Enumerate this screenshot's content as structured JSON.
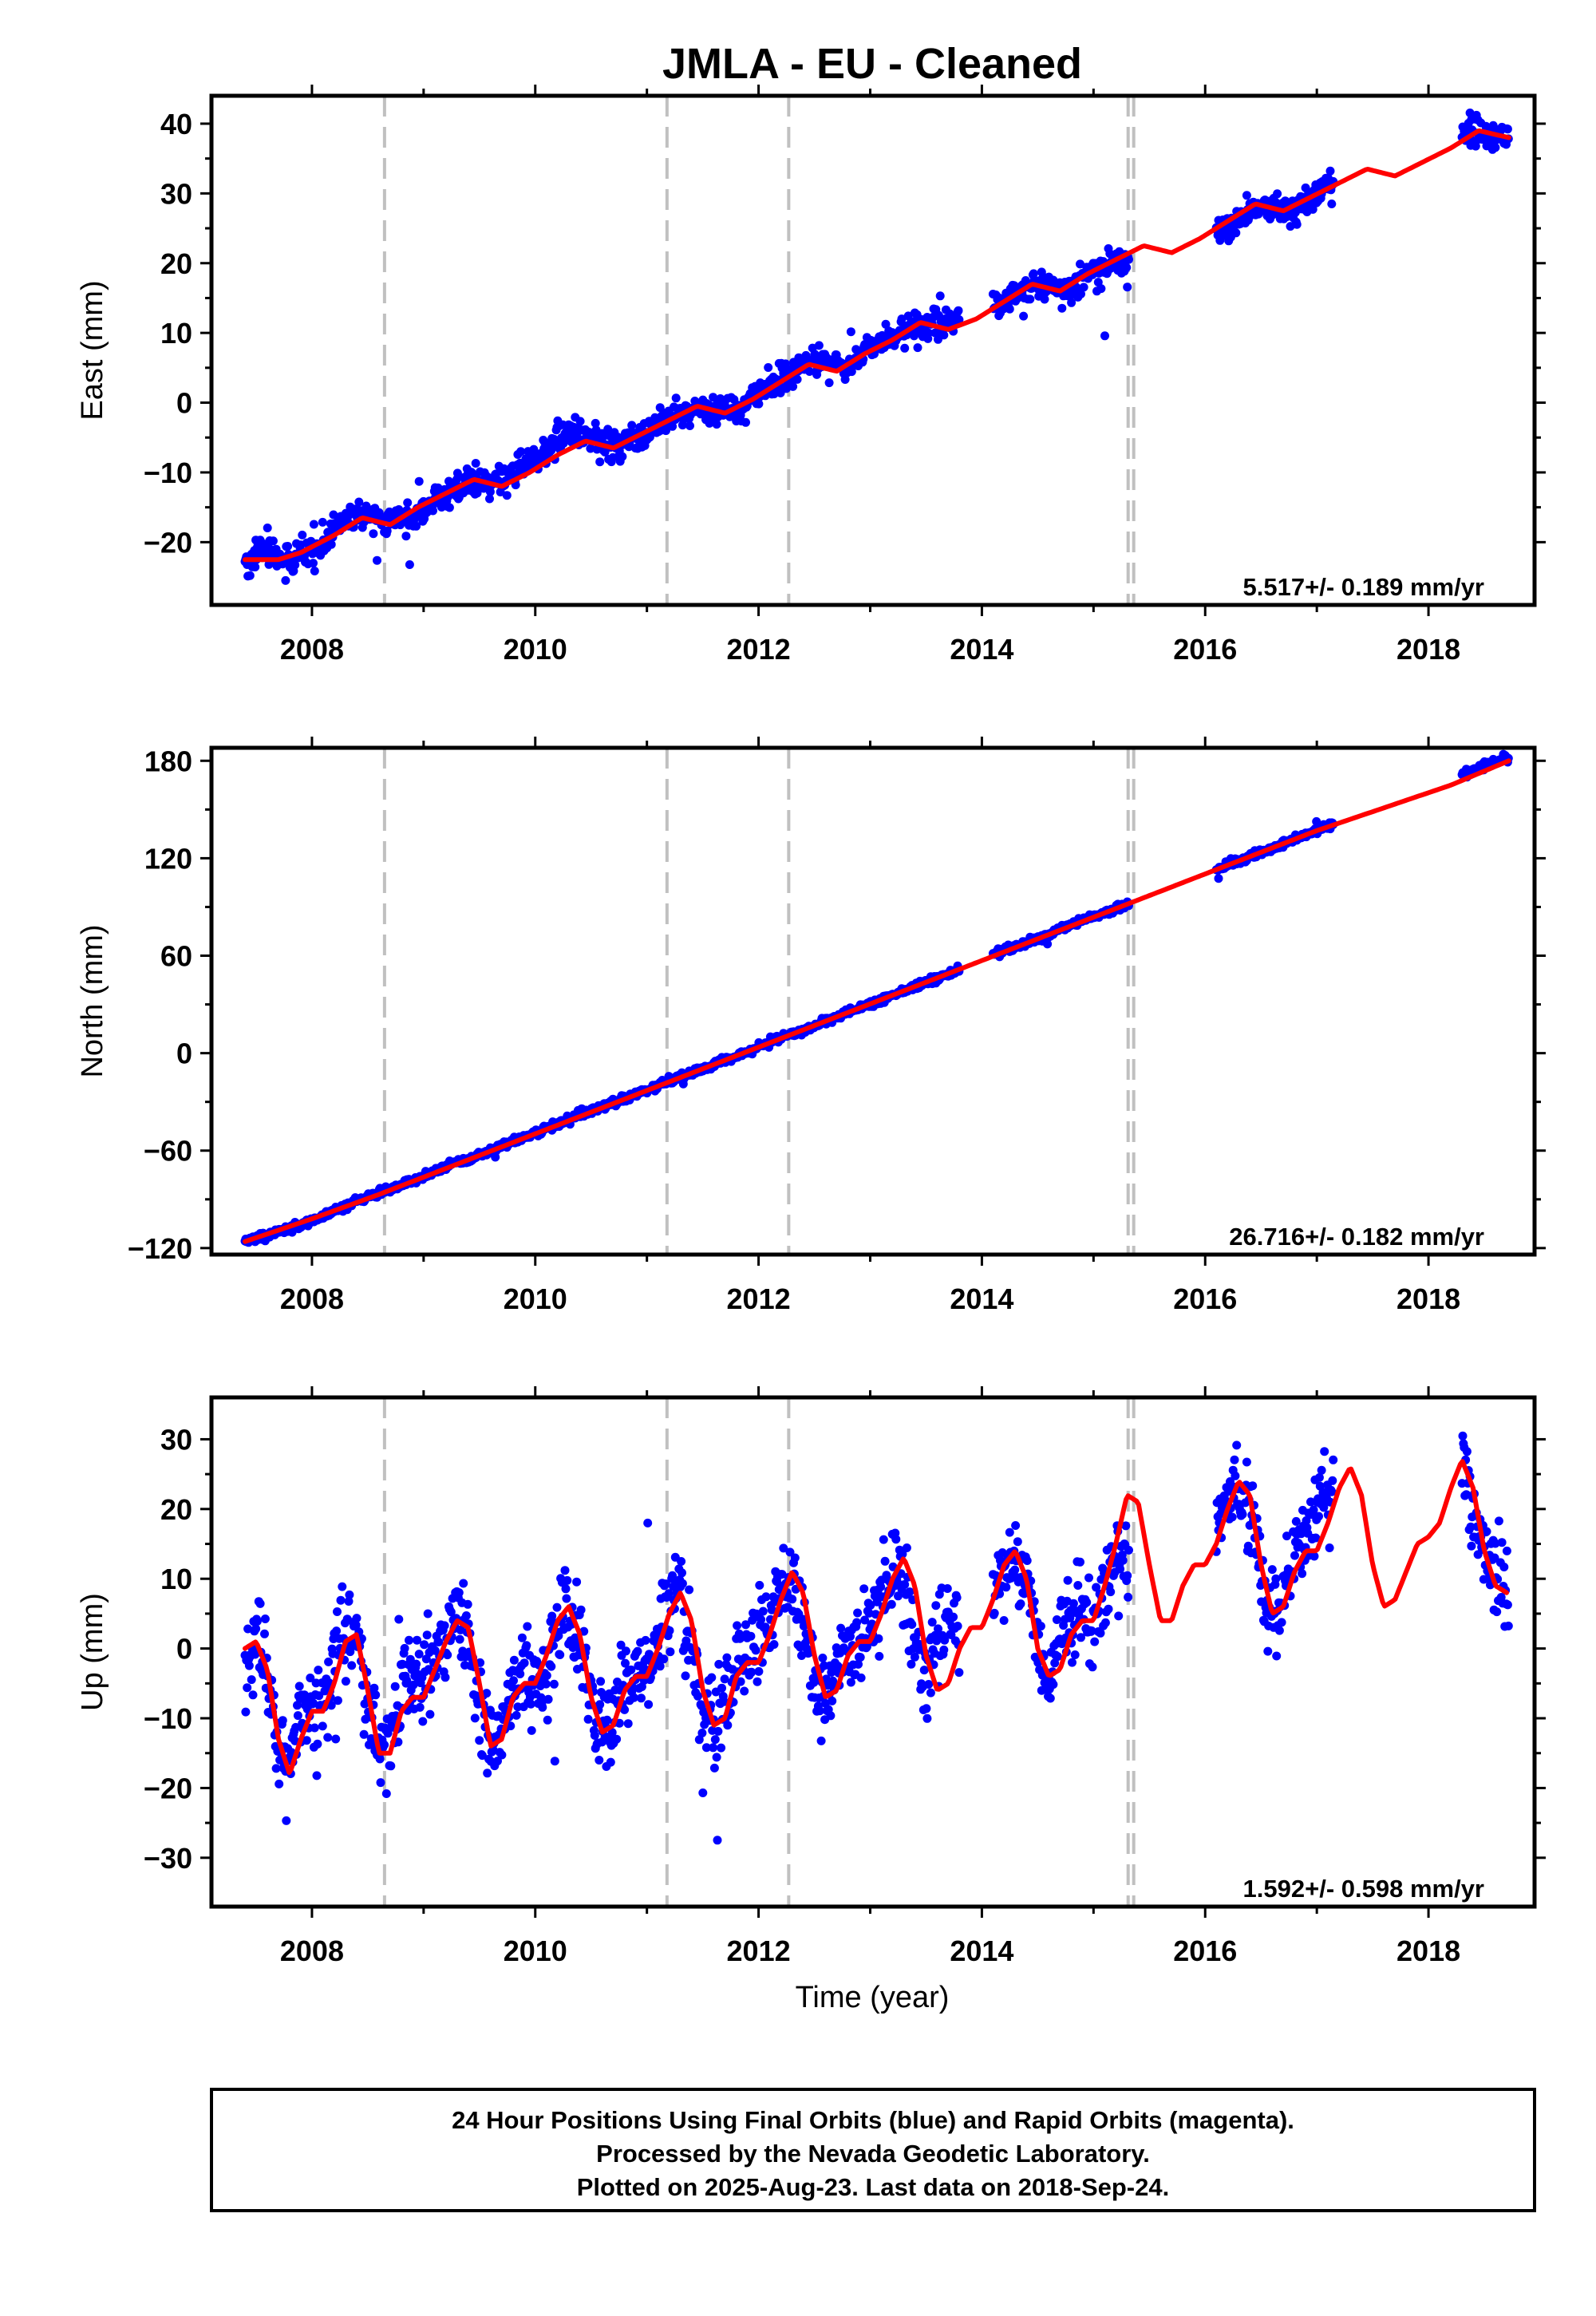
{
  "title": "JMLA  - EU - Cleaned",
  "colors": {
    "final_orbits": "#0000ff",
    "model_fit": "#ff0000",
    "equipment_change": "#c0c0c0",
    "frame": "#000000"
  },
  "x_axis": {
    "label": "Time (year)",
    "range": [
      2007.1,
      2018.95
    ],
    "ticks": [
      "2008",
      "2010",
      "2012",
      "2014",
      "2016",
      "2018"
    ]
  },
  "footer": {
    "line1": "24 Hour Positions Using Final Orbits (blue) and Rapid Orbits (magenta).",
    "line2": "Processed by the Nevada Geodetic Laboratory.",
    "line3": "Plotted on 2025-Aug-23. Last data on 2018-Sep-24."
  },
  "chart_data": [
    {
      "type": "scatter",
      "component": "east",
      "ylabel": "East (mm)",
      "ylim": [
        -29,
        44
      ],
      "yticks": [
        "−20",
        "−10",
        "0",
        "10",
        "20",
        "30",
        "40"
      ],
      "ytick_values": [
        -20,
        -10,
        0,
        10,
        20,
        30,
        40
      ],
      "rate_text": "5.517+/- 0.189 mm/yr",
      "rate_mm_per_yr": 5.517,
      "rate_sigma": 0.189,
      "offset_epochs": [
        2008.65,
        2011.18,
        2012.27,
        2015.31,
        2015.36
      ],
      "data_segments": [
        [
          2007.4,
          2013.8
        ],
        [
          2014.1,
          2015.32
        ],
        [
          2016.1,
          2017.15
        ],
        [
          2018.3,
          2018.72
        ]
      ],
      "series": [
        {
          "kind": "observations",
          "x": [
            2007.4,
            2007.6,
            2007.8,
            2008.0,
            2008.2,
            2008.4,
            2008.6,
            2008.8,
            2009.0,
            2009.2,
            2009.4,
            2009.6,
            2009.8,
            2010.0,
            2010.2,
            2010.4,
            2010.6,
            2010.8,
            2011.0,
            2011.2,
            2011.4,
            2011.6,
            2011.8,
            2012.0,
            2012.2,
            2012.4,
            2012.6,
            2012.8,
            2013.0,
            2013.2,
            2013.4,
            2013.6,
            2014.2,
            2014.4,
            2014.6,
            2014.8,
            2015.0,
            2015.2,
            2016.2,
            2016.4,
            2016.6,
            2016.8,
            2017.0,
            2018.35,
            2018.5,
            2018.65
          ],
          "y": [
            -23,
            -21,
            -23,
            -21,
            -18,
            -16,
            -16.5,
            -17,
            -15,
            -13,
            -11.5,
            -12,
            -10,
            -8,
            -5,
            -4,
            -6,
            -6,
            -4,
            -2.5,
            -1,
            -1,
            -1,
            1.5,
            3.5,
            6,
            6,
            5,
            8,
            9.5,
            11,
            11,
            14.5,
            16.5,
            17,
            16.5,
            19,
            20,
            25,
            27.5,
            28,
            27.5,
            30,
            39,
            38.5,
            38
          ]
        },
        {
          "kind": "model",
          "x": [
            2007.4,
            2007.7,
            2007.9,
            2008.2,
            2008.45,
            2008.7,
            2008.95,
            2009.2,
            2009.45,
            2009.7,
            2009.95,
            2010.2,
            2010.45,
            2010.7,
            2010.95,
            2011.2,
            2011.45,
            2011.7,
            2011.95,
            2012.2,
            2012.45,
            2012.7,
            2012.95,
            2013.2,
            2013.45,
            2013.7,
            2013.95,
            2014.2,
            2014.45,
            2014.7,
            2014.95,
            2015.2,
            2015.45,
            2015.7,
            2015.95,
            2016.2,
            2016.45,
            2016.7,
            2016.95,
            2017.2,
            2017.45,
            2017.7,
            2017.95,
            2018.2,
            2018.45,
            2018.72
          ],
          "y": [
            -22.5,
            -22.5,
            -21.5,
            -19,
            -16.5,
            -17.5,
            -15,
            -13,
            -11,
            -12,
            -10,
            -7.5,
            -5.5,
            -6.5,
            -4.5,
            -2.5,
            -0.5,
            -1.5,
            0.5,
            3,
            5.5,
            4.5,
            7,
            9,
            11.5,
            10.5,
            12,
            14.5,
            17,
            16,
            18.5,
            20.5,
            22.5,
            21.5,
            23.5,
            26,
            28.5,
            27.5,
            29.5,
            31.5,
            33.5,
            32.5,
            34.5,
            36.5,
            39,
            38
          ]
        }
      ]
    },
    {
      "type": "scatter",
      "component": "north",
      "ylabel": "North (mm)",
      "ylim": [
        -124,
        188
      ],
      "yticks": [
        "−120",
        "−60",
        "0",
        "60",
        "120",
        "180"
      ],
      "ytick_values": [
        -120,
        -60,
        0,
        60,
        120,
        180
      ],
      "rate_text": "26.716+/- 0.182 mm/yr",
      "rate_mm_per_yr": 26.716,
      "rate_sigma": 0.182,
      "offset_epochs": [
        2008.65,
        2011.18,
        2012.27,
        2015.31,
        2015.36
      ],
      "data_segments": [
        [
          2007.4,
          2013.8
        ],
        [
          2014.1,
          2015.32
        ],
        [
          2016.1,
          2017.15
        ],
        [
          2018.3,
          2018.72
        ]
      ],
      "series": [
        {
          "kind": "observations",
          "x": [
            2007.4,
            2007.6,
            2007.8,
            2008.0,
            2008.2,
            2008.4,
            2008.6,
            2008.8,
            2009.0,
            2009.2,
            2009.4,
            2009.6,
            2009.8,
            2010.0,
            2010.2,
            2010.4,
            2010.6,
            2010.8,
            2011.0,
            2011.2,
            2011.4,
            2011.6,
            2011.8,
            2012.0,
            2012.2,
            2012.4,
            2012.6,
            2012.8,
            2013.0,
            2013.2,
            2013.4,
            2013.6,
            2014.2,
            2014.4,
            2014.6,
            2014.8,
            2015.0,
            2015.2,
            2016.2,
            2016.4,
            2016.6,
            2016.8,
            2017.0,
            2018.35,
            2018.5,
            2018.65
          ],
          "y": [
            -116,
            -112,
            -108,
            -103,
            -97,
            -91,
            -86,
            -81,
            -76,
            -70,
            -65,
            -60,
            -54,
            -49,
            -44,
            -38,
            -33,
            -28,
            -23,
            -17,
            -12,
            -7,
            -2,
            4,
            9,
            14,
            20,
            25,
            30,
            36,
            41,
            46,
            63,
            68,
            73,
            79,
            84,
            89,
            116,
            121,
            126,
            132,
            137,
            173,
            177,
            181
          ]
        },
        {
          "kind": "model",
          "x": [
            2007.4,
            2008.0,
            2008.6,
            2009.2,
            2009.8,
            2010.4,
            2011.0,
            2011.6,
            2012.2,
            2012.8,
            2013.4,
            2014.0,
            2014.6,
            2015.2,
            2015.8,
            2016.4,
            2017.0,
            2017.6,
            2018.2,
            2018.72
          ],
          "y": [
            -116,
            -102,
            -87,
            -71,
            -55,
            -39,
            -23,
            -7,
            9,
            25,
            41,
            57,
            73,
            89,
            105,
            121,
            137,
            151,
            165,
            180
          ]
        }
      ]
    },
    {
      "type": "scatter",
      "component": "up",
      "ylabel": "Up (mm)",
      "ylim": [
        -37,
        36
      ],
      "yticks": [
        "−30",
        "−20",
        "−10",
        "0",
        "10",
        "20",
        "30"
      ],
      "ytick_values": [
        -30,
        -20,
        -10,
        0,
        10,
        20,
        30
      ],
      "rate_text": "1.592+/- 0.598 mm/yr",
      "rate_mm_per_yr": 1.592,
      "rate_sigma": 0.598,
      "offset_epochs": [
        2008.65,
        2011.18,
        2012.27,
        2015.31,
        2015.36
      ],
      "data_segments": [
        [
          2007.4,
          2013.8
        ],
        [
          2014.1,
          2015.32
        ],
        [
          2016.1,
          2017.15
        ],
        [
          2018.3,
          2018.72
        ]
      ],
      "series": [
        {
          "kind": "observations",
          "x": [
            2007.4,
            2007.5,
            2007.6,
            2007.7,
            2007.8,
            2007.9,
            2008.0,
            2008.1,
            2008.2,
            2008.3,
            2008.4,
            2008.5,
            2008.6,
            2008.7,
            2008.8,
            2008.9,
            2009.0,
            2009.1,
            2009.2,
            2009.3,
            2009.4,
            2009.5,
            2009.6,
            2009.7,
            2009.8,
            2009.9,
            2010.0,
            2010.1,
            2010.2,
            2010.3,
            2010.4,
            2010.5,
            2010.6,
            2010.7,
            2010.8,
            2010.9,
            2011.0,
            2011.1,
            2011.2,
            2011.3,
            2011.4,
            2011.5,
            2011.6,
            2011.7,
            2011.8,
            2011.9,
            2012.0,
            2012.1,
            2012.2,
            2012.3,
            2012.4,
            2012.5,
            2012.6,
            2012.7,
            2012.8,
            2012.9,
            2013.0,
            2013.1,
            2013.2,
            2013.3,
            2013.4,
            2013.5,
            2013.6,
            2013.7,
            2014.1,
            2014.2,
            2014.3,
            2014.4,
            2014.5,
            2014.6,
            2014.7,
            2014.8,
            2014.9,
            2015.0,
            2015.1,
            2015.2,
            2016.1,
            2016.2,
            2016.3,
            2016.4,
            2016.5,
            2016.6,
            2016.7,
            2016.8,
            2016.9,
            2017.0,
            2017.1,
            2018.3,
            2018.4,
            2018.5,
            2018.6,
            2018.7
          ],
          "y": [
            -2,
            2,
            -6,
            -14,
            -16,
            -8,
            -9,
            -8,
            -2,
            3,
            1,
            -9,
            -15,
            -13,
            -7,
            -2,
            -6,
            -3,
            2,
            5,
            1,
            -8,
            -14,
            -11,
            -5,
            -3,
            -5,
            -3,
            3,
            6,
            1,
            -9,
            -12,
            -10,
            -5,
            -3,
            -3,
            2,
            6,
            8,
            0,
            -10,
            -10,
            -8,
            -3,
            -2,
            2,
            3,
            8,
            11,
            3,
            -6,
            -7,
            -3,
            1,
            2,
            3,
            8,
            12,
            10,
            0,
            -5,
            2,
            3,
            6,
            10,
            14,
            9,
            0,
            -4,
            1,
            4,
            5,
            3,
            9,
            12,
            16,
            22,
            24,
            20,
            8,
            5,
            10,
            14,
            14,
            20,
            24,
            27,
            21,
            12,
            9,
            8
          ]
        },
        {
          "kind": "model",
          "x": [
            2007.4,
            2007.5,
            2007.6,
            2007.7,
            2007.8,
            2007.9,
            2008.0,
            2008.1,
            2008.2,
            2008.3,
            2008.4,
            2008.5,
            2008.6,
            2008.7,
            2008.8,
            2008.9,
            2009.0,
            2009.1,
            2009.2,
            2009.3,
            2009.4,
            2009.5,
            2009.6,
            2009.7,
            2009.8,
            2009.9,
            2010.0,
            2010.1,
            2010.2,
            2010.3,
            2010.4,
            2010.5,
            2010.6,
            2010.7,
            2010.8,
            2010.9,
            2011.0,
            2011.1,
            2011.2,
            2011.3,
            2011.4,
            2011.5,
            2011.6,
            2011.7,
            2011.8,
            2011.9,
            2012.0,
            2012.1,
            2012.2,
            2012.3,
            2012.4,
            2012.5,
            2012.6,
            2012.7,
            2012.8,
            2012.9,
            2013.0,
            2013.1,
            2013.2,
            2013.3,
            2013.4,
            2013.5,
            2013.6,
            2013.7,
            2013.8,
            2013.9,
            2014.0,
            2014.1,
            2014.2,
            2014.3,
            2014.4,
            2014.5,
            2014.6,
            2014.7,
            2014.8,
            2014.9,
            2015.0,
            2015.1,
            2015.2,
            2015.3,
            2015.4,
            2015.5,
            2015.6,
            2015.7,
            2015.8,
            2015.9,
            2016.0,
            2016.1,
            2016.2,
            2016.3,
            2016.4,
            2016.5,
            2016.6,
            2016.7,
            2016.8,
            2016.9,
            2017.0,
            2017.1,
            2017.2,
            2017.3,
            2017.4,
            2017.5,
            2017.6,
            2017.7,
            2017.8,
            2017.9,
            2018.0,
            2018.1,
            2018.2,
            2018.3,
            2018.4,
            2018.5,
            2018.6,
            2018.7
          ],
          "y": [
            0,
            1,
            -3,
            -13,
            -18,
            -13,
            -9,
            -9,
            -5,
            1,
            2,
            -6,
            -15,
            -15,
            -9,
            -7,
            -7,
            -3,
            1,
            4,
            3,
            -5,
            -14,
            -13,
            -7,
            -5,
            -5,
            -1,
            4,
            6,
            2,
            -7,
            -12,
            -11,
            -6,
            -4,
            -4,
            0,
            5,
            8,
            4,
            -6,
            -11,
            -10,
            -4,
            -2,
            -2,
            2,
            7,
            11,
            8,
            -1,
            -7,
            -6,
            -1,
            1,
            1,
            5,
            10,
            13,
            9,
            -1,
            -6,
            -5,
            0,
            3,
            3,
            7,
            12,
            14,
            10,
            0,
            -4,
            -3,
            2,
            4,
            4,
            9,
            15,
            22,
            21,
            12,
            4,
            4,
            9,
            12,
            12,
            15,
            20,
            24,
            22,
            12,
            5,
            6,
            11,
            14,
            14,
            18,
            23,
            26,
            22,
            12,
            6,
            7,
            11,
            15,
            16,
            18,
            23,
            27,
            23,
            14,
            9,
            8
          ]
        }
      ]
    }
  ]
}
